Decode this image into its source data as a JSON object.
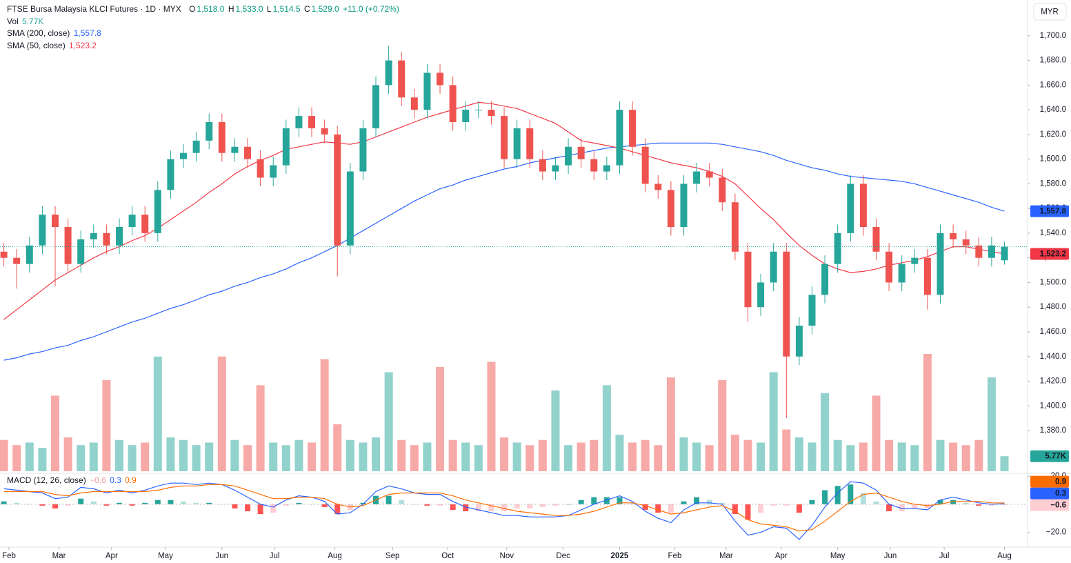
{
  "chart_data": {
    "type": "candlestick",
    "title": "FTSE Bursa Malaysia KLCI Futures · 1D · MYX",
    "currency": "MYR",
    "ohlc_legend": [
      {
        "key": "O",
        "text": "1,518.0"
      },
      {
        "key": "H",
        "text": "1,533.0"
      },
      {
        "key": "L",
        "text": "1,514.5"
      },
      {
        "key": "C",
        "text": "1,529.0"
      }
    ],
    "change": "+11.0 (+0.72%)",
    "up_color": "#26a69a",
    "down_color": "#ef5350",
    "grid": false,
    "xlim": [
      -0.3,
      79.8
    ],
    "xticks": [
      {
        "value": 0.4,
        "label": "Feb"
      },
      {
        "value": 4.3,
        "label": "Mar"
      },
      {
        "value": 8.4,
        "label": "Apr"
      },
      {
        "value": 12.6,
        "label": "May"
      },
      {
        "value": 17.0,
        "label": "Jun"
      },
      {
        "value": 21.1,
        "label": "Jul"
      },
      {
        "value": 25.8,
        "label": "Aug"
      },
      {
        "value": 30.3,
        "label": "Sep"
      },
      {
        "value": 34.6,
        "label": "Oct"
      },
      {
        "value": 39.2,
        "label": "Nov"
      },
      {
        "value": 43.6,
        "label": "Dec"
      },
      {
        "value": 48.0,
        "label": "2025"
      },
      {
        "value": 52.3,
        "label": "Feb"
      },
      {
        "value": 56.3,
        "label": "Mar"
      },
      {
        "value": 60.6,
        "label": "Apr"
      },
      {
        "value": 65.0,
        "label": "May"
      },
      {
        "value": 69.1,
        "label": "Jun"
      },
      {
        "value": 73.3,
        "label": "Jul"
      },
      {
        "value": 78.0,
        "label": "Aug"
      }
    ],
    "ylim": [
      1347,
      1729
    ],
    "yticks": [
      {
        "value": 1380,
        "label": "1,380.0"
      },
      {
        "value": 1400,
        "label": "1,400.0"
      },
      {
        "value": 1420,
        "label": "1,420.0"
      },
      {
        "value": 1440,
        "label": "1,440.0"
      },
      {
        "value": 1460,
        "label": "1,460.0"
      },
      {
        "value": 1480,
        "label": "1,480.0"
      },
      {
        "value": 1500,
        "label": "1,500.0"
      },
      {
        "value": 1520,
        "label": "1,520.0"
      },
      {
        "value": 1540,
        "label": "1,540.0"
      },
      {
        "value": 1560,
        "label": "1,560.0"
      },
      {
        "value": 1580,
        "label": "1,580.0"
      },
      {
        "value": 1600,
        "label": "1,600.0"
      },
      {
        "value": 1620,
        "label": "1,620.0"
      },
      {
        "value": 1640,
        "label": "1,640.0"
      },
      {
        "value": 1660,
        "label": "1,660.0"
      },
      {
        "value": 1680,
        "label": "1,680.0"
      },
      {
        "value": 1700,
        "label": "1,700.0"
      }
    ],
    "open": [
      1525,
      1520,
      1515,
      1530,
      1555,
      1545,
      1515,
      1535,
      1540,
      1530,
      1545,
      1555,
      1540,
      1575,
      1600,
      1605,
      1615,
      1630,
      1605,
      1610,
      1600,
      1585,
      1595,
      1625,
      1635,
      1625,
      1620,
      1530,
      1590,
      1625,
      1660,
      1680,
      1650,
      1640,
      1670,
      1660,
      1630,
      1640,
      1640,
      1635,
      1600,
      1625,
      1600,
      1590,
      1595,
      1610,
      1600,
      1590,
      1595,
      1640,
      1610,
      1580,
      1575,
      1545,
      1580,
      1590,
      1585,
      1565,
      1525,
      1480,
      1500,
      1525,
      1440,
      1465,
      1490,
      1515,
      1540,
      1580,
      1545,
      1525,
      1500,
      1515,
      1520,
      1490,
      1540,
      1535,
      1530,
      1520,
      1518
    ],
    "high": [
      1532,
      1527,
      1537,
      1562,
      1562,
      1552,
      1542,
      1547,
      1547,
      1552,
      1562,
      1562,
      1582,
      1607,
      1612,
      1622,
      1637,
      1637,
      1617,
      1617,
      1607,
      1602,
      1632,
      1642,
      1642,
      1632,
      1627,
      1597,
      1632,
      1667,
      1692,
      1687,
      1657,
      1677,
      1677,
      1667,
      1647,
      1647,
      1647,
      1642,
      1632,
      1632,
      1607,
      1602,
      1617,
      1617,
      1607,
      1602,
      1647,
      1647,
      1617,
      1587,
      1582,
      1587,
      1597,
      1597,
      1592,
      1572,
      1532,
      1507,
      1532,
      1532,
      1472,
      1497,
      1522,
      1547,
      1587,
      1587,
      1552,
      1532,
      1522,
      1527,
      1527,
      1547,
      1547,
      1542,
      1537,
      1537,
      1533
    ],
    "low": [
      1513,
      1495,
      1508,
      1523,
      1497,
      1508,
      1508,
      1528,
      1523,
      1523,
      1538,
      1533,
      1533,
      1568,
      1593,
      1598,
      1608,
      1598,
      1598,
      1593,
      1578,
      1578,
      1588,
      1618,
      1618,
      1613,
      1505,
      1523,
      1583,
      1618,
      1653,
      1643,
      1633,
      1633,
      1653,
      1623,
      1623,
      1633,
      1628,
      1593,
      1593,
      1593,
      1583,
      1583,
      1588,
      1593,
      1583,
      1583,
      1588,
      1603,
      1573,
      1568,
      1538,
      1538,
      1573,
      1578,
      1558,
      1518,
      1468,
      1473,
      1493,
      1390,
      1433,
      1458,
      1483,
      1508,
      1533,
      1538,
      1518,
      1493,
      1493,
      1508,
      1478,
      1483,
      1528,
      1523,
      1513,
      1513,
      1514.5
    ],
    "close": [
      1520,
      1515,
      1530,
      1555,
      1545,
      1515,
      1535,
      1540,
      1530,
      1545,
      1555,
      1540,
      1575,
      1600,
      1605,
      1615,
      1630,
      1605,
      1610,
      1600,
      1585,
      1595,
      1625,
      1635,
      1625,
      1620,
      1530,
      1590,
      1625,
      1660,
      1680,
      1650,
      1640,
      1670,
      1660,
      1630,
      1640,
      1640,
      1635,
      1600,
      1625,
      1600,
      1590,
      1595,
      1610,
      1600,
      1590,
      1595,
      1640,
      1610,
      1580,
      1575,
      1545,
      1580,
      1590,
      1585,
      1565,
      1525,
      1480,
      1500,
      1525,
      1440,
      1465,
      1490,
      1515,
      1540,
      1580,
      1545,
      1525,
      1500,
      1515,
      1520,
      1490,
      1540,
      1535,
      1530,
      1520,
      1530,
      1529
    ],
    "series": [
      {
        "name": "SMA (200, close)",
        "color": "#2962ff",
        "value_label": "1,557.8",
        "values": [
          1437,
          1439,
          1442,
          1444,
          1447,
          1449,
          1453,
          1456,
          1460,
          1464,
          1468,
          1471,
          1475,
          1479,
          1482,
          1486,
          1490,
          1493,
          1497,
          1500,
          1504,
          1507,
          1511,
          1516,
          1520,
          1525,
          1530,
          1536,
          1542,
          1548,
          1554,
          1560,
          1566,
          1571,
          1576,
          1579,
          1583,
          1586,
          1589,
          1592,
          1594,
          1597,
          1599,
          1601,
          1603,
          1605,
          1607,
          1609,
          1610,
          1611,
          1612,
          1613,
          1613,
          1613,
          1613,
          1613,
          1612,
          1610,
          1608,
          1606,
          1603,
          1599,
          1596,
          1593,
          1591,
          1588,
          1586,
          1585,
          1584,
          1583,
          1582,
          1580,
          1577,
          1574,
          1571,
          1568,
          1565,
          1561,
          1557.8
        ]
      },
      {
        "name": "SMA (50, close)",
        "color": "#f23645",
        "value_label": "1,523.2",
        "values": [
          1470,
          1478,
          1486,
          1494,
          1502,
          1508,
          1514,
          1520,
          1525,
          1529,
          1534,
          1538,
          1544,
          1551,
          1558,
          1565,
          1573,
          1580,
          1588,
          1594,
          1599,
          1603,
          1608,
          1610,
          1612,
          1614,
          1613,
          1612,
          1614,
          1618,
          1622,
          1626,
          1630,
          1634,
          1637,
          1640,
          1643,
          1646,
          1645,
          1643,
          1641,
          1637,
          1633,
          1629,
          1622,
          1615,
          1613,
          1611,
          1609,
          1606,
          1603,
          1600,
          1597,
          1595,
          1593,
          1590,
          1586,
          1580,
          1570,
          1560,
          1551,
          1540,
          1530,
          1522,
          1515,
          1511,
          1508,
          1509,
          1511,
          1514,
          1516,
          1518,
          1521,
          1525,
          1529,
          1529,
          1527,
          1525,
          1523.2
        ]
      }
    ],
    "volume": {
      "name": "Vol",
      "value_label": "5.77K",
      "ylim": [
        0,
        45
      ],
      "values": [
        12,
        10,
        11,
        9,
        29,
        13,
        10,
        11,
        35,
        12,
        10,
        11,
        44,
        13,
        12,
        10,
        11,
        44,
        12,
        10,
        33,
        11,
        10,
        12,
        11,
        43,
        18,
        12,
        11,
        13,
        38,
        12,
        10,
        11,
        40,
        12,
        11,
        10,
        42,
        13,
        11,
        10,
        12,
        31,
        10,
        11,
        12,
        33,
        14,
        11,
        12,
        10,
        36,
        13,
        11,
        10,
        35,
        14,
        12,
        11,
        38,
        16,
        13,
        11,
        30,
        12,
        10,
        11,
        29,
        12,
        11,
        10,
        45,
        12,
        11,
        10,
        12,
        36,
        5.77
      ]
    },
    "macd": {
      "name": "MACD (12, 26, close)",
      "ylim": [
        -29,
        21
      ],
      "yticks": [
        {
          "value": 20,
          "label": "20.0"
        },
        {
          "value": -20,
          "label": "−20.0"
        }
      ],
      "histogram": {
        "colors": [
          "#26a69a",
          "#b2dfdb",
          "#ff5252",
          "#ffcdd2"
        ],
        "value_label": "−0.6",
        "values": [
          2,
          1,
          0,
          -1,
          -3,
          -1,
          4,
          2,
          -1,
          1,
          -1,
          1,
          3,
          3,
          2,
          1,
          1,
          0,
          -3,
          -5,
          -7,
          -6,
          -1,
          1,
          0,
          -2,
          -7,
          -4,
          1,
          6,
          6,
          3,
          0,
          -1,
          -1,
          -4,
          -5,
          -5,
          -5,
          -5,
          -3,
          -3,
          -2,
          -1,
          0,
          3,
          5,
          5,
          5,
          1,
          -4,
          -6,
          -6,
          2,
          5,
          3,
          1,
          -7,
          -11,
          -6,
          -1,
          -1,
          -6,
          3,
          10,
          13,
          14,
          8,
          2,
          -5,
          -5,
          -3,
          -3,
          3,
          3,
          1,
          -1,
          -1,
          -0.6
        ]
      },
      "series": [
        {
          "color": "#2962ff",
          "value_label": "0.3",
          "values": [
            11,
            10,
            9,
            8,
            4,
            5,
            12,
            11,
            8,
            10,
            8,
            10,
            13,
            15,
            15,
            14,
            15,
            14,
            10,
            5,
            0,
            -2,
            3,
            6,
            5,
            2,
            -7,
            -6,
            0,
            9,
            13,
            11,
            8,
            7,
            7,
            2,
            -2,
            -4,
            -6,
            -8,
            -8,
            -9,
            -9,
            -9,
            -8,
            -4,
            0,
            3,
            6,
            2,
            -5,
            -10,
            -13,
            -4,
            1,
            1,
            0,
            -12,
            -22,
            -20,
            -16,
            -17,
            -25,
            -15,
            -2,
            8,
            16,
            15,
            10,
            0,
            -3,
            -3,
            -4,
            3,
            5,
            3,
            1,
            0,
            0.3
          ]
        },
        {
          "color": "#ff6d00",
          "value_label": "0.9",
          "values": [
            9,
            9,
            9,
            9,
            7,
            6,
            8,
            9,
            9,
            9,
            9,
            9,
            10,
            12,
            13,
            13,
            14,
            14,
            13,
            10,
            7,
            4,
            4,
            5,
            5,
            4,
            0,
            -2,
            -1,
            3,
            7,
            8,
            8,
            8,
            8,
            6,
            3,
            1,
            -1,
            -3,
            -5,
            -6,
            -7,
            -8,
            -8,
            -7,
            -5,
            -2,
            1,
            1,
            -1,
            -4,
            -7,
            -6,
            -4,
            -2,
            -1,
            -5,
            -11,
            -14,
            -15,
            -16,
            -19,
            -18,
            -12,
            -5,
            2,
            7,
            8,
            5,
            2,
            0,
            -1,
            0,
            2,
            2,
            2,
            1,
            0.9
          ]
        }
      ]
    }
  }
}
